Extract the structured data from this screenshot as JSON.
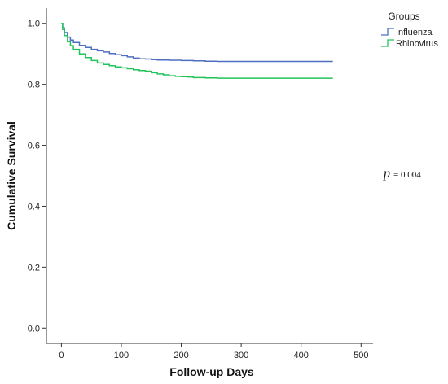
{
  "chart_data": {
    "type": "line",
    "xlabel": "Follow-up Days",
    "ylabel": "Cumulative Survival",
    "xlim": [
      -25,
      520
    ],
    "ylim": [
      -0.05,
      1.05
    ],
    "xticks": [
      "0",
      "100",
      "200",
      "300",
      "400",
      "500"
    ],
    "yticks": [
      "0.0",
      "0.2",
      "0.4",
      "0.6",
      "0.8",
      "1.0"
    ],
    "legend": {
      "title": "Groups",
      "position": "top-right"
    },
    "annotation": {
      "symbol": "p",
      "text": "= 0.004"
    },
    "series": [
      {
        "name": "Influenza",
        "color": "#4f6fbf",
        "points": [
          [
            0,
            1.0
          ],
          [
            2,
            0.985
          ],
          [
            5,
            0.97
          ],
          [
            10,
            0.955
          ],
          [
            15,
            0.945
          ],
          [
            20,
            0.937
          ],
          [
            30,
            0.928
          ],
          [
            40,
            0.921
          ],
          [
            50,
            0.915
          ],
          [
            60,
            0.91
          ],
          [
            70,
            0.906
          ],
          [
            80,
            0.901
          ],
          [
            90,
            0.897
          ],
          [
            100,
            0.894
          ],
          [
            110,
            0.89
          ],
          [
            120,
            0.886
          ],
          [
            130,
            0.884
          ],
          [
            140,
            0.883
          ],
          [
            150,
            0.881
          ],
          [
            160,
            0.88
          ],
          [
            180,
            0.879
          ],
          [
            200,
            0.878
          ],
          [
            220,
            0.877
          ],
          [
            240,
            0.876
          ],
          [
            260,
            0.875
          ],
          [
            300,
            0.875
          ],
          [
            350,
            0.875
          ],
          [
            400,
            0.875
          ],
          [
            453,
            0.875
          ]
        ]
      },
      {
        "name": "Rhinovirus",
        "color": "#22c45a",
        "points": [
          [
            0,
            1.0
          ],
          [
            2,
            0.98
          ],
          [
            5,
            0.96
          ],
          [
            10,
            0.94
          ],
          [
            15,
            0.927
          ],
          [
            20,
            0.915
          ],
          [
            30,
            0.9
          ],
          [
            40,
            0.888
          ],
          [
            50,
            0.878
          ],
          [
            60,
            0.87
          ],
          [
            70,
            0.865
          ],
          [
            80,
            0.861
          ],
          [
            90,
            0.857
          ],
          [
            100,
            0.854
          ],
          [
            110,
            0.851
          ],
          [
            120,
            0.848
          ],
          [
            130,
            0.845
          ],
          [
            140,
            0.843
          ],
          [
            150,
            0.838
          ],
          [
            160,
            0.834
          ],
          [
            170,
            0.831
          ],
          [
            180,
            0.828
          ],
          [
            190,
            0.826
          ],
          [
            200,
            0.825
          ],
          [
            210,
            0.824
          ],
          [
            220,
            0.822
          ],
          [
            240,
            0.821
          ],
          [
            260,
            0.82
          ],
          [
            300,
            0.82
          ],
          [
            350,
            0.82
          ],
          [
            400,
            0.82
          ],
          [
            453,
            0.82
          ]
        ]
      }
    ]
  }
}
